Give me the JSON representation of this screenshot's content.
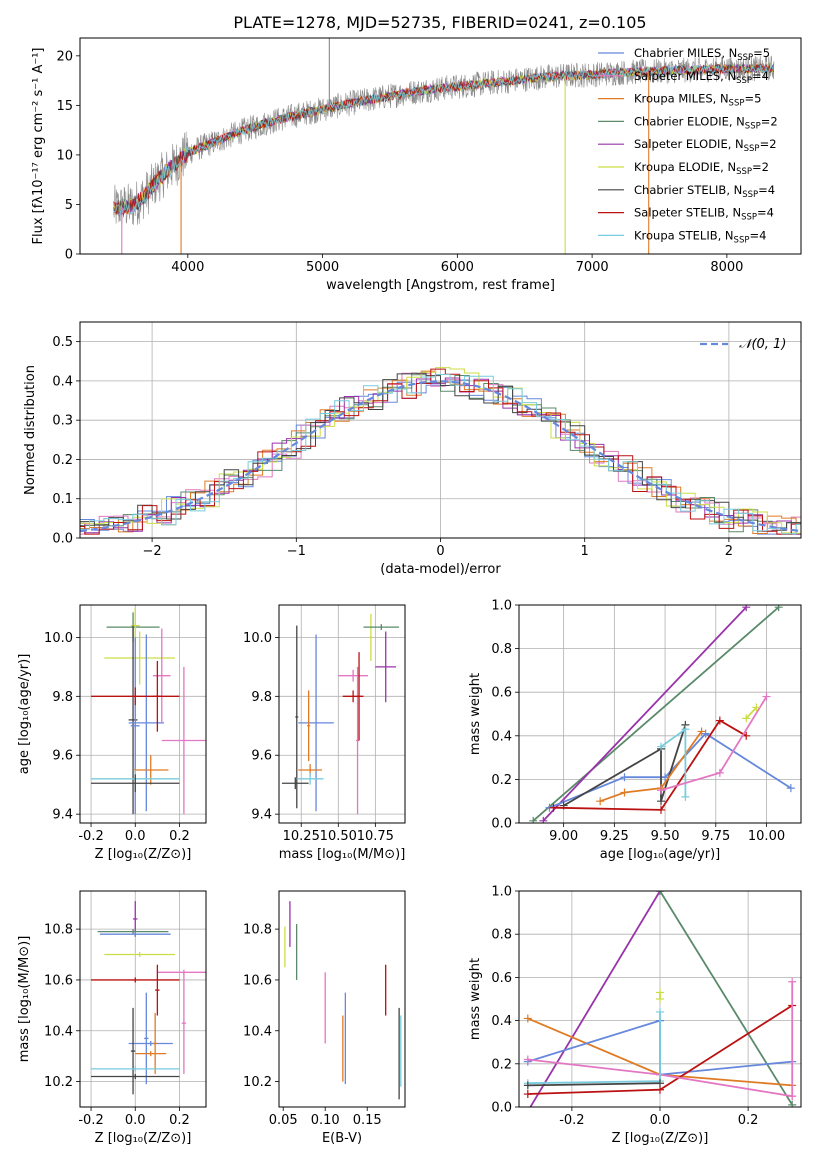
{
  "figure": {
    "title": "PLATE=1278, MJD=52735, FIBERID=0241, z=0.105"
  },
  "chart_data": [
    {
      "type": "line",
      "panel": "spectrum",
      "xlabel": "wavelength [Angstrom, rest frame]",
      "ylabel": "Flux [fλ10⁻¹⁷ erg cm⁻² s⁻¹ A⁻¹]",
      "xlim": [
        3200,
        8550
      ],
      "ylim": [
        0,
        21.8
      ],
      "xticks": [
        4000,
        5000,
        6000,
        7000,
        8000
      ],
      "yticks": [
        0,
        5,
        10,
        15,
        20
      ],
      "grid": false,
      "legend_position": "top-right",
      "trend": {
        "wavelength": [
          3450,
          3600,
          3700,
          3800,
          3900,
          4000,
          4100,
          4200,
          4400,
          4600,
          4800,
          5000,
          5200,
          5400,
          5600,
          5800,
          6000,
          6200,
          6400,
          6600,
          6800,
          7000,
          7200,
          7400,
          7600,
          7800,
          8000,
          8200,
          8350
        ],
        "flux": [
          4.6,
          4.9,
          6.2,
          7.8,
          9.0,
          10.2,
          10.8,
          11.3,
          12.4,
          13.3,
          14.0,
          14.6,
          15.2,
          15.7,
          16.2,
          16.6,
          16.9,
          17.2,
          17.5,
          17.8,
          18.0,
          18.1,
          18.3,
          18.4,
          18.5,
          18.6,
          18.7,
          18.7,
          18.8
        ]
      },
      "series": [
        {
          "name": "Chabrier MILES, N_SSP=5",
          "label_main": "Chabrier MILES, N",
          "label_sub": "SSP",
          "label_tail": "=5",
          "color": "#6688dd"
        },
        {
          "name": "Salpeter MILES, N_SSP=4",
          "label_main": "Salpeter MILES, N",
          "label_sub": "SSP",
          "label_tail": "=4",
          "color": "#e377c2"
        },
        {
          "name": "Kroupa MILES, N_SSP=5",
          "label_main": "Kroupa MILES, N",
          "label_sub": "SSP",
          "label_tail": "=5",
          "color": "#e07b25"
        },
        {
          "name": "Chabrier ELODIE, N_SSP=2",
          "label_main": "Chabrier ELODIE, N",
          "label_sub": "SSP",
          "label_tail": "=2",
          "color": "#5a8a6a"
        },
        {
          "name": "Salpeter ELODIE, N_SSP=2",
          "label_main": "Salpeter ELODIE, N",
          "label_sub": "SSP",
          "label_tail": "=2",
          "color": "#9933aa"
        },
        {
          "name": "Kroupa ELODIE, N_SSP=2",
          "label_main": "Kroupa ELODIE, N",
          "label_sub": "SSP",
          "label_tail": "=2",
          "color": "#ccdd44"
        },
        {
          "name": "Chabrier STELIB, N_SSP=4",
          "label_main": "Chabrier STELIB, N",
          "label_sub": "SSP",
          "label_tail": "=4",
          "color": "#444444"
        },
        {
          "name": "Salpeter STELIB, N_SSP=4",
          "label_main": "Salpeter STELIB, N",
          "label_sub": "SSP",
          "label_tail": "=4",
          "color": "#bb1111"
        },
        {
          "name": "Kroupa STELIB, N_SSP=4",
          "label_main": "Kroupa STELIB, N",
          "label_sub": "SSP",
          "label_tail": "=4",
          "color": "#77ccdd"
        }
      ],
      "observed_color": "#888888",
      "spikes": [
        {
          "wavelength": 3510,
          "to": 0,
          "color": "#e377c2"
        },
        {
          "wavelength": 3950,
          "to": 0,
          "color": "#e07b25"
        },
        {
          "wavelength": 5050,
          "to": 21.8,
          "color": "#888888"
        },
        {
          "wavelength": 6800,
          "to": 0,
          "color": "#ccdd44"
        },
        {
          "wavelength": 7420,
          "to": 0,
          "color": "#e07b25"
        }
      ]
    },
    {
      "type": "step",
      "panel": "residuals",
      "xlabel": "(data-model)/error",
      "ylabel": "Normed distribution",
      "xlim": [
        -2.5,
        2.5
      ],
      "ylim": [
        0,
        0.55
      ],
      "xticks": [
        -2,
        -1,
        0,
        1,
        2
      ],
      "yticks": [
        0.0,
        0.1,
        0.2,
        0.3,
        0.4,
        0.5
      ],
      "grid": true,
      "bin_width": 0.1,
      "legend": {
        "name": "N(0,1)",
        "display": "𝒩(0, 1)",
        "style": "dashed",
        "color": "#6688dd"
      }
    },
    {
      "type": "scatter",
      "panel": "age-vs-Z",
      "xlabel": "Z [log₁₀(Z/Z⊙)]",
      "ylabel": "age  [log₁₀(age/yr)]",
      "xlim": [
        -0.25,
        0.32
      ],
      "ylim": [
        9.37,
        10.11
      ],
      "xticks": [
        -0.2,
        0.0,
        0.2
      ],
      "yticks": [
        9.4,
        9.6,
        9.8,
        10.0
      ],
      "grid": true,
      "points": [
        {
          "x": -0.01,
          "y": 10.035,
          "xerr": 0.12,
          "yerr": 0.05,
          "color": "#5a8a6a"
        },
        {
          "x": 0.0,
          "y": 10.04,
          "xerr": 0.02,
          "yerr": 0.06,
          "color": "#ccdd44"
        },
        {
          "x": 0.02,
          "y": 9.93,
          "xerr": 0.16,
          "yerr": 0.09,
          "color": "#ccdd44"
        },
        {
          "x": -0.01,
          "y": 9.72,
          "xerr": 0.02,
          "yerr": 0.32,
          "color": "#444444"
        },
        {
          "x": 0.0,
          "y": 9.7,
          "xerr": 0.02,
          "yerr": 0.3,
          "color": "#6688dd"
        },
        {
          "x": 0.05,
          "y": 9.71,
          "xerr": 0.08,
          "yerr": 0.3,
          "color": "#6688dd"
        },
        {
          "x": 0.12,
          "y": 9.87,
          "xerr": 0.04,
          "yerr": 0.16,
          "color": "#e377c2"
        },
        {
          "x": 0.22,
          "y": 9.65,
          "xerr": 0.1,
          "yerr": 0.25,
          "color": "#e377c2"
        },
        {
          "x": 0.0,
          "y": 9.8,
          "xerr": 0.2,
          "yerr": 0.03,
          "color": "#bb1111"
        },
        {
          "x": 0.1,
          "y": 9.8,
          "xerr": 0.02,
          "yerr": 0.12,
          "color": "#bb1111"
        },
        {
          "x": 0.07,
          "y": 9.55,
          "xerr": 0.08,
          "yerr": 0.05,
          "color": "#e07b25"
        },
        {
          "x": 0.0,
          "y": 9.52,
          "xerr": 0.2,
          "yerr": 0.03,
          "color": "#77ccdd"
        },
        {
          "x": 0.0,
          "y": 9.505,
          "xerr": 0.2,
          "yerr": 0.03,
          "color": "#444444"
        }
      ]
    },
    {
      "type": "scatter",
      "panel": "age-vs-mass",
      "xlabel": "mass [log₁₀(M/M⊙)]",
      "ylabel": "",
      "xlim": [
        10.1,
        10.95
      ],
      "ylim": [
        9.37,
        10.11
      ],
      "xticks": [
        10.25,
        10.5,
        10.75
      ],
      "yticks": [
        9.4,
        9.6,
        9.8,
        10.0
      ],
      "grid": true,
      "points": [
        {
          "x": 10.22,
          "y": 9.73,
          "xerr": 0.01,
          "yerr": 0.31,
          "color": "#444444"
        },
        {
          "x": 10.35,
          "y": 9.71,
          "xerr": 0.12,
          "yerr": 0.3,
          "color": "#6688dd"
        },
        {
          "x": 10.3,
          "y": 9.7,
          "xerr": 0.01,
          "yerr": 0.12,
          "color": "#e07b25"
        },
        {
          "x": 10.31,
          "y": 9.55,
          "xerr": 0.08,
          "yerr": 0.02,
          "color": "#e07b25"
        },
        {
          "x": 10.31,
          "y": 9.52,
          "xerr": 0.09,
          "yerr": 0.02,
          "color": "#77ccdd"
        },
        {
          "x": 10.21,
          "y": 9.505,
          "xerr": 0.09,
          "yerr": 0.02,
          "color": "#444444"
        },
        {
          "x": 10.6,
          "y": 9.87,
          "xerr": 0.1,
          "yerr": 0.02,
          "color": "#e377c2"
        },
        {
          "x": 10.63,
          "y": 9.65,
          "xerr": 0.01,
          "yerr": 0.25,
          "color": "#e377c2"
        },
        {
          "x": 10.6,
          "y": 9.8,
          "xerr": 0.07,
          "yerr": 0.02,
          "color": "#bb1111"
        },
        {
          "x": 10.64,
          "y": 9.8,
          "xerr": 0.01,
          "yerr": 0.15,
          "color": "#bb1111"
        },
        {
          "x": 10.72,
          "y": 10.0,
          "xerr": 0.01,
          "yerr": 0.08,
          "color": "#ccdd44"
        },
        {
          "x": 10.79,
          "y": 10.035,
          "xerr": 0.12,
          "yerr": 0.01,
          "color": "#5a8a6a"
        },
        {
          "x": 10.82,
          "y": 9.9,
          "xerr": 0.07,
          "yerr": 0.12,
          "color": "#9933aa"
        }
      ]
    },
    {
      "type": "line",
      "panel": "mass-weight-vs-age",
      "xlabel": "age  [log₁₀(age/yr)]",
      "ylabel": "mass weight",
      "xlim": [
        8.78,
        10.17
      ],
      "ylim": [
        0,
        1.0
      ],
      "xticks": [
        9.0,
        9.25,
        9.5,
        9.75,
        10.0
      ],
      "yticks": [
        0.0,
        0.2,
        0.4,
        0.6,
        0.8,
        1.0
      ],
      "grid": true,
      "series": [
        {
          "color": "#5a8a6a",
          "x": [
            8.85,
            10.06
          ],
          "y": [
            0.01,
            0.99
          ]
        },
        {
          "color": "#9933aa",
          "x": [
            8.9,
            9.9
          ],
          "y": [
            0.01,
            0.99
          ]
        },
        {
          "color": "#6688dd",
          "x": [
            8.93,
            9.3,
            9.5,
            9.7,
            10.12
          ],
          "y": [
            0.07,
            0.21,
            0.21,
            0.41,
            0.16
          ]
        },
        {
          "color": "#444444",
          "x": [
            9.0,
            9.48,
            9.48,
            9.6
          ],
          "y": [
            0.08,
            0.34,
            0.1,
            0.45
          ]
        },
        {
          "color": "#e07b25",
          "x": [
            9.18,
            9.3,
            9.48,
            9.68
          ],
          "y": [
            0.1,
            0.14,
            0.16,
            0.42
          ]
        },
        {
          "color": "#bb1111",
          "x": [
            8.95,
            9.48,
            9.77,
            9.9
          ],
          "y": [
            0.07,
            0.06,
            0.47,
            0.4
          ]
        },
        {
          "color": "#77ccdd",
          "x": [
            9.48,
            9.6,
            9.6
          ],
          "y": [
            0.35,
            0.43,
            0.12
          ]
        },
        {
          "color": "#e377c2",
          "x": [
            9.48,
            9.77,
            10.0
          ],
          "y": [
            0.15,
            0.23,
            0.58
          ]
        },
        {
          "color": "#ccdd44",
          "x": [
            9.9,
            9.95
          ],
          "y": [
            0.48,
            0.53
          ]
        }
      ]
    },
    {
      "type": "scatter",
      "panel": "mass-vs-Z",
      "xlabel": "Z [log₁₀(Z/Z⊙)]",
      "ylabel": "mass [log₁₀(M/M⊙)]",
      "xlim": [
        -0.25,
        0.32
      ],
      "ylim": [
        10.1,
        10.95
      ],
      "xticks": [
        -0.2,
        0.0,
        0.2
      ],
      "yticks": [
        10.2,
        10.4,
        10.6,
        10.8
      ],
      "grid": true,
      "points": [
        {
          "x": 0.0,
          "y": 10.84,
          "xerr": 0.01,
          "yerr": 0.07,
          "color": "#9933aa"
        },
        {
          "x": -0.01,
          "y": 10.79,
          "xerr": 0.16,
          "yerr": 0.01,
          "color": "#5a8a6a"
        },
        {
          "x": 0.0,
          "y": 10.78,
          "xerr": 0.16,
          "yerr": 0.01,
          "color": "#6688dd"
        },
        {
          "x": 0.02,
          "y": 10.7,
          "xerr": 0.16,
          "yerr": 0.01,
          "color": "#ccdd44"
        },
        {
          "x": 0.22,
          "y": 10.63,
          "xerr": 0.12,
          "yerr": 0.01,
          "color": "#e377c2"
        },
        {
          "x": 0.22,
          "y": 10.43,
          "xerr": 0.01,
          "yerr": 0.2,
          "color": "#e377c2"
        },
        {
          "x": 0.0,
          "y": 10.6,
          "xerr": 0.2,
          "yerr": 0.01,
          "color": "#bb1111"
        },
        {
          "x": 0.1,
          "y": 10.56,
          "xerr": 0.01,
          "yerr": 0.1,
          "color": "#bb1111"
        },
        {
          "x": 0.05,
          "y": 10.37,
          "xerr": 0.01,
          "yerr": 0.18,
          "color": "#6688dd"
        },
        {
          "x": 0.07,
          "y": 10.35,
          "xerr": 0.1,
          "yerr": 0.01,
          "color": "#6688dd"
        },
        {
          "x": 0.09,
          "y": 10.35,
          "xerr": 0.01,
          "yerr": 0.12,
          "color": "#e07b25"
        },
        {
          "x": 0.07,
          "y": 10.31,
          "xerr": 0.07,
          "yerr": 0.01,
          "color": "#e07b25"
        },
        {
          "x": -0.01,
          "y": 10.32,
          "xerr": 0.01,
          "yerr": 0.17,
          "color": "#444444"
        },
        {
          "x": 0.0,
          "y": 10.25,
          "xerr": 0.2,
          "yerr": 0.01,
          "color": "#77ccdd"
        },
        {
          "x": 0.0,
          "y": 10.22,
          "xerr": 0.2,
          "yerr": 0.01,
          "color": "#444444"
        }
      ]
    },
    {
      "type": "scatter",
      "panel": "mass-vs-ebv",
      "xlabel": "E(B-V)",
      "ylabel": "",
      "xlim": [
        0.045,
        0.195
      ],
      "ylim": [
        10.1,
        10.95
      ],
      "xticks": [
        0.05,
        0.1,
        0.15
      ],
      "yticks": [
        10.2,
        10.4,
        10.6,
        10.8
      ],
      "grid": false,
      "points": [
        {
          "x": 0.052,
          "y": 10.73,
          "yerr": 0.08,
          "color": "#ccdd44"
        },
        {
          "x": 0.058,
          "y": 10.82,
          "yerr": 0.09,
          "color": "#9933aa"
        },
        {
          "x": 0.066,
          "y": 10.71,
          "yerr": 0.11,
          "color": "#5a8a6a"
        },
        {
          "x": 0.1,
          "y": 10.49,
          "yerr": 0.14,
          "color": "#e377c2"
        },
        {
          "x": 0.121,
          "y": 10.33,
          "yerr": 0.13,
          "color": "#e07b25"
        },
        {
          "x": 0.124,
          "y": 10.37,
          "yerr": 0.18,
          "color": "#6688dd"
        },
        {
          "x": 0.172,
          "y": 10.56,
          "yerr": 0.1,
          "color": "#bb1111"
        },
        {
          "x": 0.188,
          "y": 10.31,
          "yerr": 0.18,
          "color": "#444444"
        },
        {
          "x": 0.19,
          "y": 10.32,
          "yerr": 0.14,
          "color": "#77ccdd"
        }
      ]
    },
    {
      "type": "line",
      "panel": "mass-weight-vs-Z",
      "xlabel": "Z [log₁₀(Z/Z⊙)]",
      "ylabel": "mass weight",
      "xlim": [
        -0.32,
        0.32
      ],
      "ylim": [
        0,
        1.0
      ],
      "xticks": [
        -0.2,
        0.0,
        0.2
      ],
      "yticks": [
        0.0,
        0.2,
        0.4,
        0.6,
        0.8,
        1.0
      ],
      "grid": true,
      "series": [
        {
          "color": "#9933aa",
          "x": [
            -0.3,
            0.0
          ],
          "y": [
            -0.02,
            1.0
          ]
        },
        {
          "color": "#5a8a6a",
          "x": [
            0.0,
            0.3
          ],
          "y": [
            1.0,
            0.01
          ]
        },
        {
          "color": "#e07b25",
          "x": [
            -0.3,
            0.0,
            0.3
          ],
          "y": [
            0.41,
            0.15,
            0.1
          ]
        },
        {
          "color": "#6688dd",
          "x": [
            -0.3,
            0.0,
            0.0,
            0.3
          ],
          "y": [
            0.21,
            0.4,
            0.15,
            0.21
          ]
        },
        {
          "color": "#bb1111",
          "x": [
            -0.3,
            0.0,
            0.3
          ],
          "y": [
            0.06,
            0.08,
            0.47
          ]
        },
        {
          "color": "#e377c2",
          "x": [
            -0.3,
            0.0,
            0.3
          ],
          "y": [
            0.22,
            0.15,
            0.05
          ]
        },
        {
          "color": "#77ccdd",
          "x": [
            -0.3,
            0.0,
            0.0
          ],
          "y": [
            0.11,
            0.12,
            0.44
          ]
        },
        {
          "color": "#ccdd44",
          "x": [
            0.0,
            0.0
          ],
          "y": [
            0.5,
            0.53
          ]
        },
        {
          "color": "#444444",
          "x": [
            -0.3,
            0.0
          ],
          "y": [
            0.1,
            0.11
          ]
        },
        {
          "color": "#e377c2",
          "x": [
            0.3,
            0.3
          ],
          "y": [
            0.05,
            0.58
          ]
        }
      ]
    }
  ]
}
